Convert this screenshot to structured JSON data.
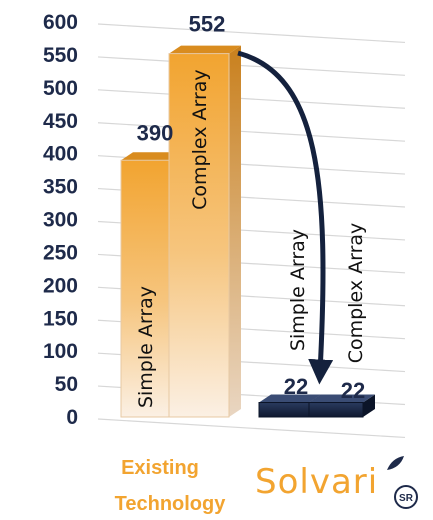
{
  "chart_data": {
    "type": "bar",
    "ylim": [
      0,
      600
    ],
    "yticks": [
      0,
      50,
      100,
      150,
      200,
      250,
      300,
      350,
      400,
      450,
      500,
      550,
      600
    ],
    "grid": true,
    "groups": [
      {
        "label": "Existing Technology",
        "label_lines": [
          "Existing",
          "Technology"
        ],
        "bars": [
          {
            "name": "Simple Array",
            "value": 390,
            "display": "390"
          },
          {
            "name": "Complex Array",
            "value": 552,
            "display": "552"
          }
        ]
      },
      {
        "label": "Solvari",
        "bars": [
          {
            "name": "Simple Array",
            "value": 22,
            "display": "22"
          },
          {
            "name": "Complex Array",
            "value": 22,
            "display": "22"
          }
        ]
      }
    ]
  },
  "brand": {
    "logo_text": "Solvari",
    "badge_text": "SR"
  },
  "colors": {
    "axis_text": "#1e2a4a",
    "existing_bar_top": "#f2a430",
    "existing_bar_bottom": "#fbeee0",
    "solvari_bar": "#14213d",
    "arrow": "#14213d",
    "existing_label": "#f2a430",
    "grid": "#d7d7d7"
  }
}
